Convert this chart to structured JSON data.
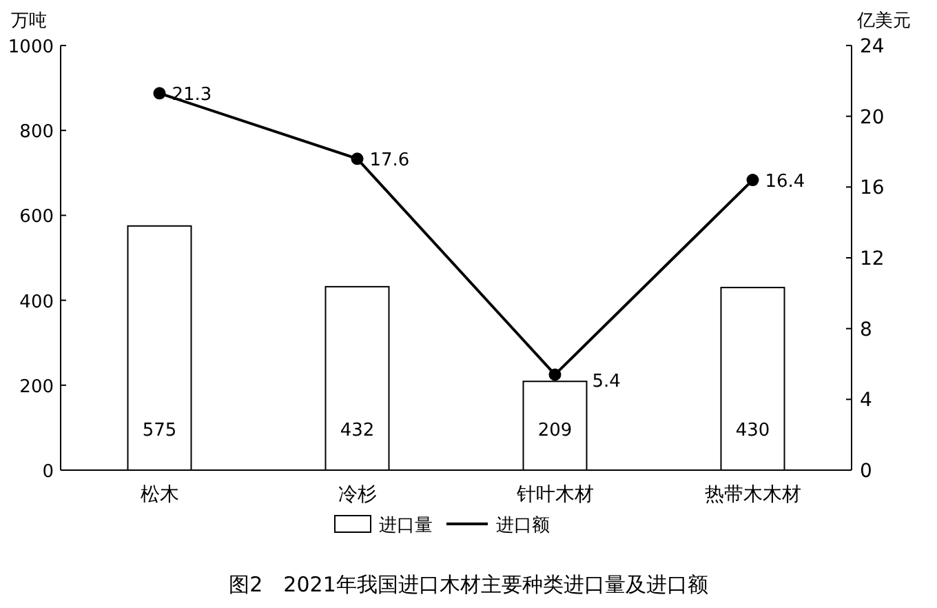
{
  "chart_data": {
    "type": "bar",
    "title": "图2　2021年我国进口木材主要种类进口量及进口额",
    "ylabel": "万吨",
    "y2label": "亿美元",
    "categories": [
      "松木",
      "冷杉",
      "针叶木材",
      "热带木木材"
    ],
    "series": [
      {
        "name": "进口量",
        "color": "#ffffff",
        "values": [
          575,
          432,
          209,
          430
        ]
      },
      {
        "name": "进口额",
        "type": "line",
        "axis": "y2",
        "color": "#000000",
        "values": [
          21.3,
          17.6,
          5.4,
          16.4
        ]
      }
    ],
    "ylim": [
      0,
      1000
    ],
    "yticks": [
      0,
      200,
      400,
      600,
      800,
      1000
    ],
    "y2lim": [
      0,
      24
    ],
    "y2ticks": [
      0,
      4,
      8,
      12,
      16,
      20,
      24
    ],
    "data_labels": true,
    "legend": "bottom",
    "marker": "circle",
    "line_style": "solid",
    "grid": false
  }
}
